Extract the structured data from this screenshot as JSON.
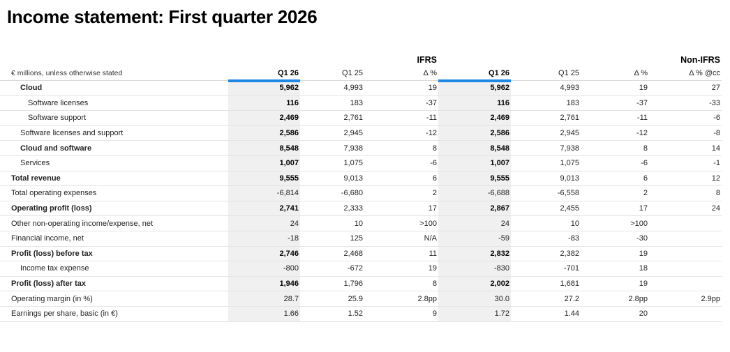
{
  "title": "Income statement: First quarter 2026",
  "table": {
    "unit_label": "€ millions, unless otherwise stated",
    "groups": [
      {
        "label": "IFRS"
      },
      {
        "label": "Non-IFRS"
      }
    ],
    "columns": [
      "Q1 26",
      "Q1 25",
      "Δ %",
      "Q1 26",
      "Q1 25",
      "Δ %",
      "Δ % @cc"
    ],
    "highlight_columns": [
      0,
      3
    ],
    "rows": [
      {
        "label": "Cloud",
        "indent": 1,
        "label_bold": true,
        "value_bold": true,
        "values": [
          "5,962",
          "4,993",
          "19",
          "5,962",
          "4,993",
          "19",
          "27"
        ]
      },
      {
        "label": "Software licenses",
        "indent": 2,
        "label_bold": false,
        "value_bold": true,
        "values": [
          "116",
          "183",
          "-37",
          "116",
          "183",
          "-37",
          "-33"
        ]
      },
      {
        "label": "Software support",
        "indent": 2,
        "label_bold": false,
        "value_bold": true,
        "values": [
          "2,469",
          "2,761",
          "-11",
          "2,469",
          "2,761",
          "-11",
          "-6"
        ]
      },
      {
        "label": "Software licenses and support",
        "indent": 1,
        "label_bold": false,
        "value_bold": true,
        "values": [
          "2,586",
          "2,945",
          "-12",
          "2,586",
          "2,945",
          "-12",
          "-8"
        ]
      },
      {
        "label": "Cloud and software",
        "indent": 1,
        "label_bold": true,
        "value_bold": true,
        "values": [
          "8,548",
          "7,938",
          "8",
          "8,548",
          "7,938",
          "8",
          "14"
        ]
      },
      {
        "label": "Services",
        "indent": 1,
        "label_bold": false,
        "value_bold": true,
        "values": [
          "1,007",
          "1,075",
          "-6",
          "1,007",
          "1,075",
          "-6",
          "-1"
        ]
      },
      {
        "label": "Total revenue",
        "indent": 0,
        "label_bold": true,
        "value_bold": true,
        "values": [
          "9,555",
          "9,013",
          "6",
          "9,555",
          "9,013",
          "6",
          "12"
        ]
      },
      {
        "label": "Total operating expenses",
        "indent": 0,
        "label_bold": false,
        "value_bold": false,
        "values": [
          "-6,814",
          "-6,680",
          "2",
          "-6,688",
          "-6,558",
          "2",
          "8"
        ]
      },
      {
        "label": "Operating profit (loss)",
        "indent": 0,
        "label_bold": true,
        "value_bold": true,
        "values": [
          "2,741",
          "2,333",
          "17",
          "2,867",
          "2,455",
          "17",
          "24"
        ]
      },
      {
        "label": "Other non-operating income/expense, net",
        "indent": 0,
        "label_bold": false,
        "value_bold": false,
        "values": [
          "24",
          "10",
          ">100",
          "24",
          "10",
          ">100",
          ""
        ]
      },
      {
        "label": "Financial income, net",
        "indent": 0,
        "label_bold": false,
        "value_bold": false,
        "values": [
          "-18",
          "125",
          "N/A",
          "-59",
          "-83",
          "-30",
          ""
        ]
      },
      {
        "label": "Profit (loss) before tax",
        "indent": 0,
        "label_bold": true,
        "value_bold": true,
        "values": [
          "2,746",
          "2,468",
          "11",
          "2,832",
          "2,382",
          "19",
          ""
        ]
      },
      {
        "label": "Income tax expense",
        "indent": 1,
        "label_bold": false,
        "value_bold": false,
        "values": [
          "-800",
          "-672",
          "19",
          "-830",
          "-701",
          "18",
          ""
        ]
      },
      {
        "label": "Profit (loss) after tax",
        "indent": 0,
        "label_bold": true,
        "value_bold": true,
        "values": [
          "1,946",
          "1,796",
          "8",
          "2,002",
          "1,681",
          "19",
          ""
        ]
      },
      {
        "label": "Operating margin (in %)",
        "indent": 0,
        "label_bold": false,
        "value_bold": false,
        "values": [
          "28.7",
          "25.9",
          "2.8pp",
          "30.0",
          "27.2",
          "2.8pp",
          "2.9pp"
        ]
      },
      {
        "label": "Earnings per share, basic (in €)",
        "indent": 0,
        "label_bold": false,
        "value_bold": false,
        "values": [
          "1.66",
          "1.52",
          "9",
          "1.72",
          "1.44",
          "20",
          ""
        ]
      }
    ]
  },
  "colors": {
    "accent_blue": "#1e88e5",
    "highlight_bg": "#f0f0f0",
    "row_border": "#e4e4e4"
  }
}
